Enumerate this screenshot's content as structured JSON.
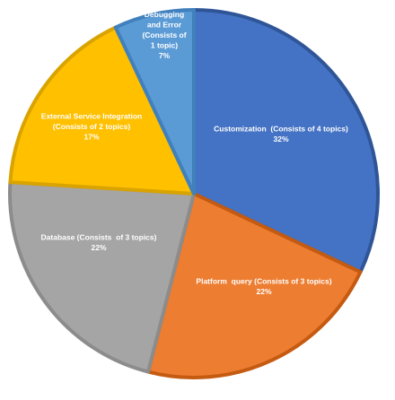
{
  "chart_data": {
    "type": "pie",
    "title": "",
    "start_angle_deg": 0,
    "direction": "clockwise",
    "slices": [
      {
        "label_lines": [
          "Customization  (Consists of 4 topics)",
          "32%"
        ],
        "value": 32,
        "fill": "#4472C4",
        "edge": "#2F5597"
      },
      {
        "label_lines": [
          "Platform  query (Consists of 3 topics)",
          "22%"
        ],
        "value": 22,
        "fill": "#ED7D31",
        "edge": "#C55A11"
      },
      {
        "label_lines": [
          "Database (Consists  of 3 topics)",
          "22%"
        ],
        "value": 22,
        "fill": "#A5A5A5",
        "edge": "#8C8C8C"
      },
      {
        "label_lines": [
          "External Service Integration",
          "(Consists of 2 topics)",
          "17%"
        ],
        "value": 17,
        "fill": "#FFC000",
        "edge": "#D9A300"
      },
      {
        "label_lines": [
          "Debugging",
          "and Error",
          "(Consists of",
          "1 topic)",
          "7%"
        ],
        "value": 7,
        "fill": "#5B9BD5",
        "edge": "#3F80BD"
      }
    ]
  }
}
